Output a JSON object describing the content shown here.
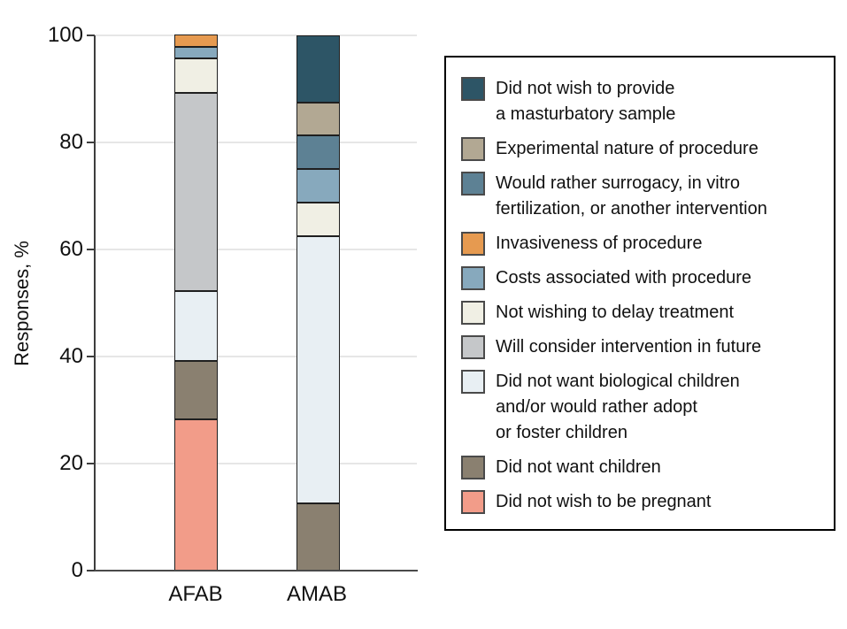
{
  "chart_data": {
    "type": "bar",
    "subtype": "stacked-vertical",
    "title": "",
    "xlabel": "",
    "ylabel": "Responses, %",
    "ylim": [
      0,
      100
    ],
    "yticks": [
      0,
      20,
      40,
      60,
      80,
      100
    ],
    "grid": true,
    "legend_position": "right",
    "categories": [
      "AFAB",
      "AMAB"
    ],
    "stack_order": "bottom_to_top",
    "series": [
      {
        "name": "Did not wish to be pregnant",
        "color": "#f29c89",
        "values": [
          28.3,
          0
        ],
        "legend_lines": [
          "Did not wish to be pregnant"
        ]
      },
      {
        "name": "Did not want children",
        "color": "#8a8070",
        "values": [
          10.9,
          12.5
        ],
        "legend_lines": [
          "Did not want children"
        ]
      },
      {
        "name": "Did not want biological children and/or would rather adopt or foster children",
        "color": "#e8eff3",
        "values": [
          13.0,
          50.0
        ],
        "legend_lines": [
          "Did not want biological children",
          "and/or would rather adopt",
          "or foster children"
        ]
      },
      {
        "name": "Will consider intervention in future",
        "color": "#c5c7c9",
        "values": [
          37.0,
          0
        ],
        "legend_lines": [
          "Will consider intervention in future"
        ]
      },
      {
        "name": "Not wishing to delay treatment",
        "color": "#f0efe4",
        "values": [
          6.5,
          6.25
        ],
        "legend_lines": [
          "Not wishing to delay treatment"
        ]
      },
      {
        "name": "Costs associated with procedure",
        "color": "#87a9bd",
        "values": [
          2.2,
          6.25
        ],
        "legend_lines": [
          "Costs associated with procedure"
        ]
      },
      {
        "name": "Invasiveness of procedure",
        "color": "#e69a50",
        "values": [
          2.2,
          0
        ],
        "legend_lines": [
          "Invasiveness of procedure"
        ]
      },
      {
        "name": "Would rather surrogacy, in vitro fertilization, or another intervention",
        "color": "#5d8194",
        "values": [
          0,
          6.25
        ],
        "legend_lines": [
          "Would rather surrogacy, in vitro",
          "fertilization, or another intervention"
        ]
      },
      {
        "name": "Experimental nature of procedure",
        "color": "#b2a893",
        "values": [
          0,
          6.25
        ],
        "legend_lines": [
          "Experimental nature of procedure"
        ]
      },
      {
        "name": "Did not wish to provide a masturbatory sample",
        "color": "#2d5566",
        "values": [
          0,
          12.5
        ],
        "legend_lines": [
          "Did not wish to provide",
          "a masturbatory sample"
        ]
      }
    ]
  }
}
